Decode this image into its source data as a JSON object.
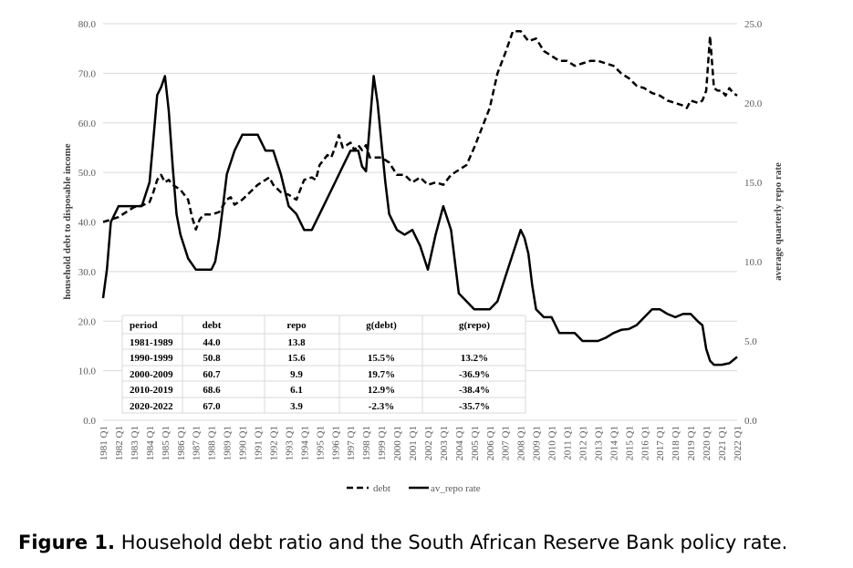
{
  "chart_data": {
    "type": "line",
    "ylabel_left": "household debt to disposable income",
    "ylabel_right": "average quarterly repo rate",
    "ylim_left": [
      0,
      80
    ],
    "ylim_right": [
      0,
      25
    ],
    "yticks_left": [
      "0.0",
      "10.0",
      "20.0",
      "30.0",
      "40.0",
      "50.0",
      "60.0",
      "70.0",
      "80.0"
    ],
    "yticks_right": [
      "0.0",
      "5.0",
      "10.0",
      "15.0",
      "20.0",
      "25.0"
    ],
    "xticks": [
      "1981 Q1",
      "1982 Q1",
      "1983 Q1",
      "1984 Q1",
      "1985 Q1",
      "1986 Q1",
      "1987 Q1",
      "1988 Q1",
      "1989 Q1",
      "1990 Q1",
      "1991 Q1",
      "1992 Q1",
      "1993 Q1",
      "1994 Q1",
      "1995 Q1",
      "1996 Q1",
      "1997 Q1",
      "1998 Q1",
      "1999 Q1",
      "2000 Q1",
      "2001 Q1",
      "2002 Q1",
      "2003 Q1",
      "2004 Q1",
      "2005 Q1",
      "2006 Q1",
      "2007 Q1",
      "2008 Q1",
      "2009 Q1",
      "2010 Q1",
      "2011 Q1",
      "2012 Q1",
      "2013 Q1",
      "2014 Q1",
      "2015 Q1",
      "2016 Q1",
      "2017 Q1",
      "2018 Q1",
      "2019 Q1",
      "2020 Q1",
      "2021 Q1",
      "2022 Q1"
    ],
    "grid": true,
    "legend": "bottom",
    "series": [
      {
        "name": "debt",
        "axis": "left",
        "style": "dashed",
        "points": [
          [
            1981.0,
            40.0
          ],
          [
            1981.5,
            40.5
          ],
          [
            1982.0,
            41.0
          ],
          [
            1982.5,
            42.0
          ],
          [
            1983.0,
            43.0
          ],
          [
            1983.5,
            43.3
          ],
          [
            1984.0,
            44.0
          ],
          [
            1984.25,
            46.0
          ],
          [
            1984.5,
            48.5
          ],
          [
            1984.75,
            49.5
          ],
          [
            1985.0,
            48.0
          ],
          [
            1985.25,
            48.5
          ],
          [
            1985.5,
            47.5
          ],
          [
            1986.0,
            46.5
          ],
          [
            1986.5,
            44.5
          ],
          [
            1986.75,
            41.0
          ],
          [
            1987.0,
            38.5
          ],
          [
            1987.25,
            40.5
          ],
          [
            1987.5,
            41.5
          ],
          [
            1988.0,
            41.5
          ],
          [
            1988.5,
            42.0
          ],
          [
            1989.0,
            44.5
          ],
          [
            1989.25,
            45.0
          ],
          [
            1989.5,
            43.5
          ],
          [
            1990.0,
            44.5
          ],
          [
            1990.5,
            46.0
          ],
          [
            1991.0,
            47.5
          ],
          [
            1991.5,
            48.5
          ],
          [
            1991.75,
            49.0
          ],
          [
            1992.0,
            47.5
          ],
          [
            1992.5,
            46.0
          ],
          [
            1993.0,
            45.5
          ],
          [
            1993.5,
            44.5
          ],
          [
            1993.75,
            46.5
          ],
          [
            1994.0,
            48.5
          ],
          [
            1994.5,
            49.0
          ],
          [
            1994.75,
            48.5
          ],
          [
            1995.0,
            51.5
          ],
          [
            1995.5,
            53.5
          ],
          [
            1995.75,
            53.0
          ],
          [
            1996.0,
            55.0
          ],
          [
            1996.25,
            57.5
          ],
          [
            1996.5,
            55.0
          ],
          [
            1997.0,
            56.0
          ],
          [
            1997.25,
            54.5
          ],
          [
            1997.5,
            55.5
          ],
          [
            1997.75,
            54.5
          ],
          [
            1998.0,
            55.5
          ],
          [
            1998.25,
            53.0
          ],
          [
            1998.5,
            53.0
          ],
          [
            1999.0,
            53.0
          ],
          [
            1999.5,
            52.0
          ],
          [
            2000.0,
            49.5
          ],
          [
            2000.5,
            49.5
          ],
          [
            2001.0,
            48.0
          ],
          [
            2001.25,
            48.5
          ],
          [
            2001.5,
            49.0
          ],
          [
            2002.0,
            47.5
          ],
          [
            2002.5,
            48.0
          ],
          [
            2003.0,
            47.5
          ],
          [
            2003.5,
            49.5
          ],
          [
            2004.0,
            50.5
          ],
          [
            2004.5,
            51.5
          ],
          [
            2005.0,
            55.0
          ],
          [
            2005.5,
            59.0
          ],
          [
            2006.0,
            63.0
          ],
          [
            2006.5,
            70.0
          ],
          [
            2007.0,
            74.0
          ],
          [
            2007.5,
            78.5
          ],
          [
            2008.0,
            78.5
          ],
          [
            2008.5,
            76.5
          ],
          [
            2009.0,
            77.0
          ],
          [
            2009.5,
            74.5
          ],
          [
            2010.0,
            73.5
          ],
          [
            2010.5,
            72.5
          ],
          [
            2011.0,
            72.5
          ],
          [
            2011.5,
            71.5
          ],
          [
            2012.0,
            72.0
          ],
          [
            2012.5,
            72.5
          ],
          [
            2013.0,
            72.5
          ],
          [
            2013.5,
            72.0
          ],
          [
            2014.0,
            71.5
          ],
          [
            2014.5,
            70.0
          ],
          [
            2015.0,
            69.0
          ],
          [
            2015.5,
            67.5
          ],
          [
            2016.0,
            67.0
          ],
          [
            2016.5,
            66.0
          ],
          [
            2017.0,
            65.5
          ],
          [
            2017.5,
            64.5
          ],
          [
            2018.0,
            64.0
          ],
          [
            2018.5,
            63.5
          ],
          [
            2018.75,
            63.0
          ],
          [
            2019.0,
            64.5
          ],
          [
            2019.5,
            64.0
          ],
          [
            2019.75,
            64.5
          ],
          [
            2020.0,
            66.5
          ],
          [
            2020.25,
            77.5
          ],
          [
            2020.5,
            67.0
          ],
          [
            2020.75,
            66.5
          ],
          [
            2021.0,
            66.5
          ],
          [
            2021.25,
            65.5
          ],
          [
            2021.5,
            67.0
          ],
          [
            2021.75,
            66.0
          ],
          [
            2022.0,
            65.5
          ]
        ]
      },
      {
        "name": "av_repo rate",
        "axis": "right",
        "style": "solid",
        "points": [
          [
            1981.0,
            7.7
          ],
          [
            1981.25,
            9.5
          ],
          [
            1981.5,
            12.5
          ],
          [
            1982.0,
            13.5
          ],
          [
            1982.5,
            13.5
          ],
          [
            1983.0,
            13.5
          ],
          [
            1983.5,
            13.5
          ],
          [
            1984.0,
            15.0
          ],
          [
            1984.25,
            17.7
          ],
          [
            1984.5,
            20.5
          ],
          [
            1984.75,
            21.0
          ],
          [
            1985.0,
            21.7
          ],
          [
            1985.25,
            19.5
          ],
          [
            1985.5,
            16.0
          ],
          [
            1985.75,
            13.0
          ],
          [
            1986.0,
            11.7
          ],
          [
            1986.5,
            10.2
          ],
          [
            1987.0,
            9.5
          ],
          [
            1987.5,
            9.5
          ],
          [
            1988.0,
            9.5
          ],
          [
            1988.25,
            10.0
          ],
          [
            1988.5,
            11.5
          ],
          [
            1988.75,
            13.5
          ],
          [
            1989.0,
            15.5
          ],
          [
            1989.5,
            17.0
          ],
          [
            1990.0,
            18.0
          ],
          [
            1990.5,
            18.0
          ],
          [
            1991.0,
            18.0
          ],
          [
            1991.5,
            17.0
          ],
          [
            1992.0,
            17.0
          ],
          [
            1992.5,
            15.5
          ],
          [
            1993.0,
            13.5
          ],
          [
            1993.5,
            13.0
          ],
          [
            1994.0,
            12.0
          ],
          [
            1994.5,
            12.0
          ],
          [
            1995.0,
            13.0
          ],
          [
            1995.5,
            14.0
          ],
          [
            1996.0,
            15.0
          ],
          [
            1996.5,
            16.0
          ],
          [
            1997.0,
            17.0
          ],
          [
            1997.5,
            17.0
          ],
          [
            1997.75,
            16.0
          ],
          [
            1998.0,
            15.7
          ],
          [
            1998.5,
            21.7
          ],
          [
            1998.75,
            20.0
          ],
          [
            1999.0,
            17.5
          ],
          [
            1999.25,
            15.0
          ],
          [
            1999.5,
            13.0
          ],
          [
            2000.0,
            12.0
          ],
          [
            2000.5,
            11.7
          ],
          [
            2001.0,
            12.0
          ],
          [
            2001.5,
            11.0
          ],
          [
            2002.0,
            9.5
          ],
          [
            2002.5,
            11.7
          ],
          [
            2003.0,
            13.5
          ],
          [
            2003.5,
            12.0
          ],
          [
            2004.0,
            8.0
          ],
          [
            2004.5,
            7.5
          ],
          [
            2005.0,
            7.0
          ],
          [
            2005.5,
            7.0
          ],
          [
            2006.0,
            7.0
          ],
          [
            2006.5,
            7.5
          ],
          [
            2007.0,
            9.0
          ],
          [
            2007.5,
            10.5
          ],
          [
            2008.0,
            12.0
          ],
          [
            2008.25,
            11.5
          ],
          [
            2008.5,
            10.5
          ],
          [
            2008.75,
            8.5
          ],
          [
            2009.0,
            7.0
          ],
          [
            2009.5,
            6.5
          ],
          [
            2010.0,
            6.5
          ],
          [
            2010.5,
            5.5
          ],
          [
            2011.0,
            5.5
          ],
          [
            2011.5,
            5.5
          ],
          [
            2012.0,
            5.0
          ],
          [
            2012.5,
            5.0
          ],
          [
            2013.0,
            5.0
          ],
          [
            2013.5,
            5.2
          ],
          [
            2014.0,
            5.5
          ],
          [
            2014.5,
            5.7
          ],
          [
            2015.0,
            5.75
          ],
          [
            2015.5,
            6.0
          ],
          [
            2016.0,
            6.5
          ],
          [
            2016.5,
            7.0
          ],
          [
            2017.0,
            7.0
          ],
          [
            2017.5,
            6.7
          ],
          [
            2018.0,
            6.5
          ],
          [
            2018.5,
            6.7
          ],
          [
            2019.0,
            6.7
          ],
          [
            2019.5,
            6.2
          ],
          [
            2019.75,
            6.0
          ],
          [
            2020.0,
            4.5
          ],
          [
            2020.25,
            3.75
          ],
          [
            2020.5,
            3.5
          ],
          [
            2021.0,
            3.5
          ],
          [
            2021.5,
            3.6
          ],
          [
            2021.75,
            3.8
          ],
          [
            2022.0,
            4.0
          ]
        ]
      }
    ]
  },
  "table": {
    "headers": [
      "period",
      "debt",
      "repo",
      "g(debt)",
      "g(repo)"
    ],
    "rows": [
      [
        "1981-1989",
        "44.0",
        "13.8",
        "",
        ""
      ],
      [
        "1990-1999",
        "50.8",
        "15.6",
        "15.5%",
        "13.2%"
      ],
      [
        "2000-2009",
        "60.7",
        "9.9",
        "19.7%",
        "-36.9%"
      ],
      [
        "2010-2019",
        "68.6",
        "6.1",
        "12.9%",
        "-38.4%"
      ],
      [
        "2020-2022",
        "67.0",
        "3.9",
        "-2.3%",
        "-35.7%"
      ]
    ]
  },
  "caption": {
    "label": "Figure 1.",
    "text": " Household debt ratio and the South African Reserve Bank policy rate."
  }
}
